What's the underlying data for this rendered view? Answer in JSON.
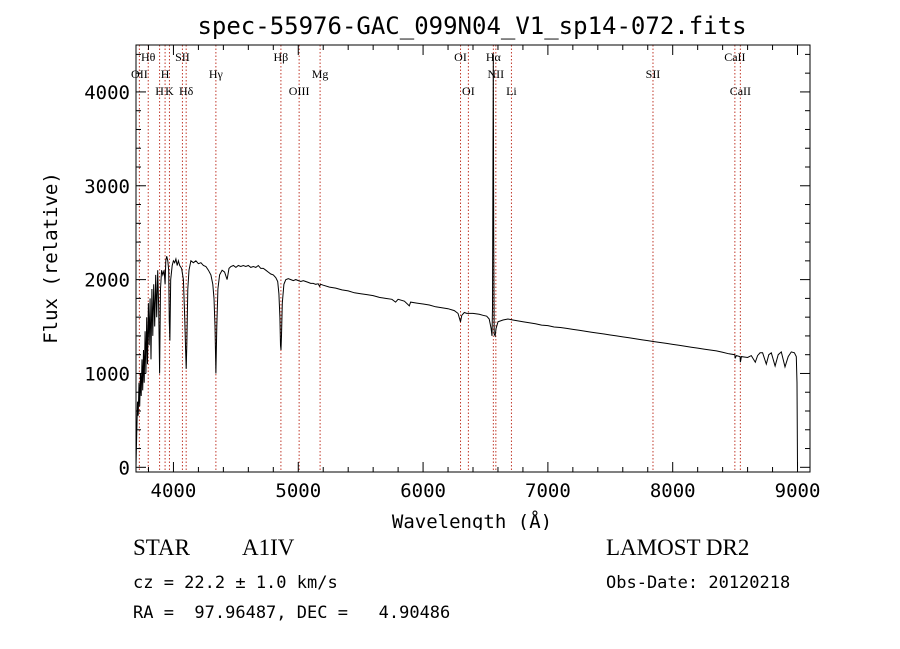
{
  "chart_data": {
    "type": "line",
    "title": "spec-55976-GAC_099N04_V1_sp14-072.fits",
    "xlabel": "Wavelength (Å)",
    "ylabel": "Flux (relative)",
    "xlim": [
      3700,
      9100
    ],
    "ylim": [
      -50,
      4500
    ],
    "x_ticks": [
      4000,
      5000,
      6000,
      7000,
      8000,
      9000
    ],
    "y_ticks": [
      0,
      1000,
      2000,
      3000,
      4000
    ],
    "grid": false,
    "series": [
      {
        "values_note": "",
        "points": [
          [
            3700,
            0
          ],
          [
            3705,
            300
          ],
          [
            3712,
            700
          ],
          [
            3718,
            550
          ],
          [
            3724,
            900
          ],
          [
            3730,
            650
          ],
          [
            3736,
            1000
          ],
          [
            3742,
            760
          ],
          [
            3748,
            1150
          ],
          [
            3754,
            820
          ],
          [
            3760,
            1250
          ],
          [
            3766,
            900
          ],
          [
            3773,
            1450
          ],
          [
            3779,
            1000
          ],
          [
            3786,
            1600
          ],
          [
            3792,
            1100
          ],
          [
            3799,
            1750
          ],
          [
            3806,
            1300
          ],
          [
            3813,
            1800
          ],
          [
            3820,
            1150
          ],
          [
            3827,
            1900
          ],
          [
            3835,
            1400
          ],
          [
            3842,
            1950
          ],
          [
            3850,
            1500
          ],
          [
            3858,
            2050
          ],
          [
            3866,
            1600
          ],
          [
            3874,
            2100
          ],
          [
            3882,
            1700
          ],
          [
            3889,
            1000
          ],
          [
            3896,
            1900
          ],
          [
            3905,
            2100
          ],
          [
            3915,
            2050
          ],
          [
            3925,
            2100
          ],
          [
            3933,
            1950
          ],
          [
            3939,
            2200
          ],
          [
            3946,
            2250
          ],
          [
            3955,
            2200
          ],
          [
            3962,
            2100
          ],
          [
            3967,
            1550
          ],
          [
            3972,
            1350
          ],
          [
            3978,
            2000
          ],
          [
            3990,
            2150
          ],
          [
            4000,
            2200
          ],
          [
            4010,
            2180
          ],
          [
            4020,
            2220
          ],
          [
            4030,
            2150
          ],
          [
            4040,
            2200
          ],
          [
            4050,
            2150
          ],
          [
            4065,
            2120
          ],
          [
            4080,
            2000
          ],
          [
            4090,
            1600
          ],
          [
            4097,
            1250
          ],
          [
            4102,
            1050
          ],
          [
            4107,
            1300
          ],
          [
            4115,
            1900
          ],
          [
            4125,
            2100
          ],
          [
            4140,
            2200
          ],
          [
            4160,
            2180
          ],
          [
            4180,
            2200
          ],
          [
            4200,
            2170
          ],
          [
            4220,
            2180
          ],
          [
            4240,
            2150
          ],
          [
            4260,
            2140
          ],
          [
            4280,
            2100
          ],
          [
            4300,
            2050
          ],
          [
            4315,
            1950
          ],
          [
            4325,
            1800
          ],
          [
            4333,
            1500
          ],
          [
            4340,
            1000
          ],
          [
            4347,
            1500
          ],
          [
            4356,
            1900
          ],
          [
            4370,
            2050
          ],
          [
            4390,
            2100
          ],
          [
            4410,
            2080
          ],
          [
            4430,
            2000
          ],
          [
            4445,
            2120
          ],
          [
            4460,
            2140
          ],
          [
            4480,
            2150
          ],
          [
            4500,
            2130
          ],
          [
            4520,
            2150
          ],
          [
            4540,
            2140
          ],
          [
            4560,
            2150
          ],
          [
            4580,
            2140
          ],
          [
            4600,
            2150
          ],
          [
            4620,
            2130
          ],
          [
            4640,
            2140
          ],
          [
            4660,
            2130
          ],
          [
            4680,
            2150
          ],
          [
            4700,
            2120
          ],
          [
            4720,
            2120
          ],
          [
            4740,
            2100
          ],
          [
            4760,
            2080
          ],
          [
            4780,
            2060
          ],
          [
            4800,
            2050
          ],
          [
            4820,
            2020
          ],
          [
            4835,
            1980
          ],
          [
            4845,
            1850
          ],
          [
            4853,
            1600
          ],
          [
            4858,
            1300
          ],
          [
            4862,
            1250
          ],
          [
            4866,
            1400
          ],
          [
            4872,
            1750
          ],
          [
            4885,
            1950
          ],
          [
            4900,
            2000
          ],
          [
            4920,
            2010
          ],
          [
            4940,
            2000
          ],
          [
            4960,
            1990
          ],
          [
            4980,
            2000
          ],
          [
            5000,
            1990
          ],
          [
            5020,
            1980
          ],
          [
            5040,
            1990
          ],
          [
            5060,
            1980
          ],
          [
            5080,
            1970
          ],
          [
            5100,
            1960
          ],
          [
            5120,
            1960
          ],
          [
            5140,
            1950
          ],
          [
            5160,
            1955
          ],
          [
            5170,
            1930
          ],
          [
            5180,
            1950
          ],
          [
            5200,
            1940
          ],
          [
            5250,
            1920
          ],
          [
            5300,
            1910
          ],
          [
            5350,
            1890
          ],
          [
            5400,
            1880
          ],
          [
            5450,
            1860
          ],
          [
            5500,
            1850
          ],
          [
            5550,
            1840
          ],
          [
            5600,
            1830
          ],
          [
            5650,
            1810
          ],
          [
            5700,
            1800
          ],
          [
            5750,
            1790
          ],
          [
            5780,
            1760
          ],
          [
            5800,
            1790
          ],
          [
            5850,
            1770
          ],
          [
            5890,
            1720
          ],
          [
            5900,
            1760
          ],
          [
            5950,
            1750
          ],
          [
            6000,
            1740
          ],
          [
            6050,
            1730
          ],
          [
            6100,
            1710
          ],
          [
            6150,
            1700
          ],
          [
            6200,
            1690
          ],
          [
            6250,
            1670
          ],
          [
            6280,
            1640
          ],
          [
            6300,
            1550
          ],
          [
            6310,
            1620
          ],
          [
            6330,
            1650
          ],
          [
            6350,
            1640
          ],
          [
            6400,
            1640
          ],
          [
            6450,
            1630
          ],
          [
            6480,
            1620
          ],
          [
            6510,
            1610
          ],
          [
            6530,
            1580
          ],
          [
            6545,
            1480
          ],
          [
            6552,
            1400
          ],
          [
            6556,
            1700
          ],
          [
            6560,
            3400
          ],
          [
            6563,
            4400
          ],
          [
            6566,
            2500
          ],
          [
            6570,
            1420
          ],
          [
            6577,
            1400
          ],
          [
            6585,
            1480
          ],
          [
            6600,
            1550
          ],
          [
            6640,
            1570
          ],
          [
            6680,
            1580
          ],
          [
            6720,
            1570
          ],
          [
            6760,
            1560
          ],
          [
            6800,
            1550
          ],
          [
            6850,
            1540
          ],
          [
            6900,
            1530
          ],
          [
            6950,
            1515
          ],
          [
            7000,
            1510
          ],
          [
            7050,
            1495
          ],
          [
            7100,
            1490
          ],
          [
            7150,
            1480
          ],
          [
            7200,
            1470
          ],
          [
            7250,
            1460
          ],
          [
            7300,
            1450
          ],
          [
            7350,
            1440
          ],
          [
            7400,
            1430
          ],
          [
            7450,
            1420
          ],
          [
            7500,
            1410
          ],
          [
            7550,
            1400
          ],
          [
            7600,
            1390
          ],
          [
            7650,
            1380
          ],
          [
            7700,
            1370
          ],
          [
            7750,
            1360
          ],
          [
            7800,
            1350
          ],
          [
            7850,
            1340
          ],
          [
            7900,
            1330
          ],
          [
            7950,
            1320
          ],
          [
            8000,
            1310
          ],
          [
            8050,
            1300
          ],
          [
            8100,
            1290
          ],
          [
            8150,
            1280
          ],
          [
            8200,
            1270
          ],
          [
            8250,
            1260
          ],
          [
            8300,
            1250
          ],
          [
            8350,
            1240
          ],
          [
            8400,
            1225
          ],
          [
            8450,
            1210
          ],
          [
            8498,
            1200
          ],
          [
            8500,
            1160
          ],
          [
            8510,
            1190
          ],
          [
            8540,
            1180
          ],
          [
            8542,
            1120
          ],
          [
            8550,
            1180
          ],
          [
            8600,
            1170
          ],
          [
            8630,
            1190
          ],
          [
            8662,
            1120
          ],
          [
            8680,
            1190
          ],
          [
            8700,
            1220
          ],
          [
            8720,
            1220
          ],
          [
            8750,
            1100
          ],
          [
            8770,
            1200
          ],
          [
            8790,
            1220
          ],
          [
            8820,
            1080
          ],
          [
            8845,
            1200
          ],
          [
            8870,
            1230
          ],
          [
            8900,
            1070
          ],
          [
            8925,
            1180
          ],
          [
            8950,
            1230
          ],
          [
            8975,
            1220
          ],
          [
            8990,
            1180
          ],
          [
            8996,
            900
          ],
          [
            9000,
            0
          ]
        ]
      }
    ],
    "lines": [
      {
        "label": "Hθ",
        "x": 3798,
        "row": 1
      },
      {
        "label": "OII",
        "x": 3727,
        "row": 2
      },
      {
        "label": "H",
        "x": 3933,
        "row": 2
      },
      {
        "label": "SII",
        "x": 4072,
        "row": 1
      },
      {
        "label": "K",
        "x": 3968,
        "row": 3
      },
      {
        "label": "Hδ",
        "x": 4102,
        "row": 3
      },
      {
        "label": "Hγ",
        "x": 4340,
        "row": 2
      },
      {
        "label": "Hβ",
        "x": 4861,
        "row": 1
      },
      {
        "label": "OIII",
        "x": 5007,
        "row": 3
      },
      {
        "label": "Mg",
        "x": 5175,
        "row": 2
      },
      {
        "label": "OI",
        "x": 6300,
        "row": 1
      },
      {
        "label": "OI",
        "x": 6363,
        "row": 3
      },
      {
        "label": "Hα",
        "x": 6563,
        "row": 1
      },
      {
        "label": "NII",
        "x": 6583,
        "row": 2
      },
      {
        "label": "Li",
        "x": 6708,
        "row": 3
      },
      {
        "label": "SII",
        "x": 7842,
        "row": 2
      },
      {
        "label": "CaII",
        "x": 8498,
        "row": 1
      },
      {
        "label": "CaII",
        "x": 8542,
        "row": 3
      },
      {
        "label": "H",
        "x": 3889,
        "row": 3
      }
    ]
  },
  "info": {
    "object_type": "STAR",
    "object_class": "A1IV",
    "survey": "LAMOST DR2",
    "cz": "cz = 22.2 ± 1.0 km/s",
    "obs_date": "Obs-Date: 20120218",
    "radec": "RA =  97.96487, DEC =   4.90486"
  },
  "colors": {
    "axis": "#000000",
    "spectrum": "#000000",
    "line_marker": "#c0392b"
  }
}
